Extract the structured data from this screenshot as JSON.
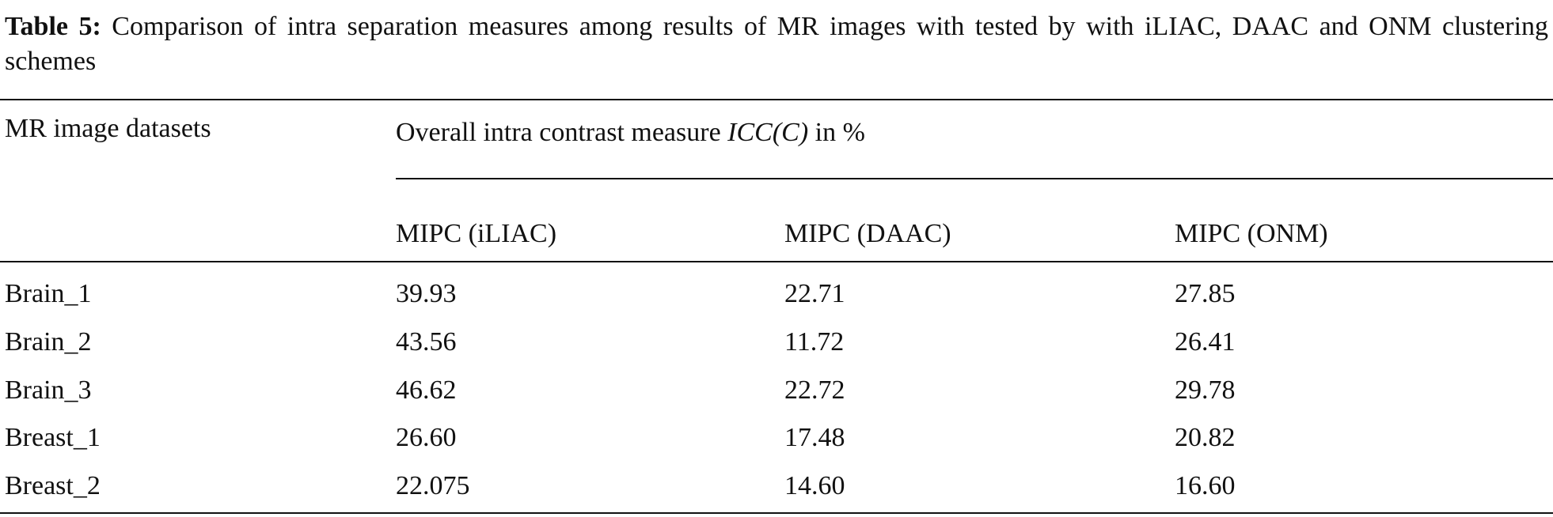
{
  "caption": {
    "label": "Table 5:",
    "text": "Comparison of intra separation measures among results of MR images with tested by with iLIAC, DAAC and ONM clustering schemes"
  },
  "table": {
    "header": {
      "dataset": "MR image datasets",
      "group_prefix": "Overall intra contrast measure",
      "group_formula": "ICC(C)",
      "group_suffix": "in %"
    },
    "columns": [
      "MIPC (iLIAC)",
      "MIPC (DAAC)",
      "MIPC (ONM)"
    ],
    "rows": [
      [
        "Brain_1",
        "39.93",
        "22.71",
        "27.85"
      ],
      [
        "Brain_2",
        "43.56",
        "11.72",
        "26.41"
      ],
      [
        "Brain_3",
        "46.62",
        "22.72",
        "29.78"
      ],
      [
        "Breast_1",
        "26.60",
        "17.48",
        "20.82"
      ],
      [
        "Breast_2",
        "22.075",
        "14.60",
        "16.60"
      ]
    ]
  }
}
